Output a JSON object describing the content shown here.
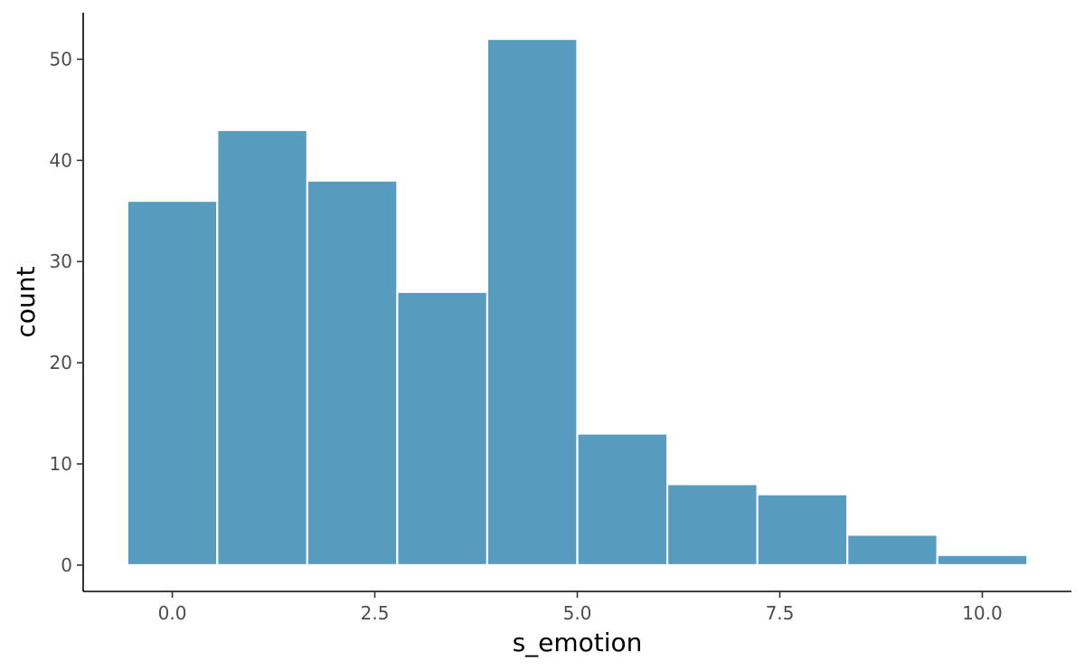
{
  "chart_data": {
    "type": "bar",
    "title": "",
    "xlabel": "s_emotion",
    "ylabel": "count",
    "bar_color": "#579bbe",
    "bin_width": 1.111,
    "bins": [
      {
        "x_center": 0.0,
        "count": 36
      },
      {
        "x_center": 1.111,
        "count": 43
      },
      {
        "x_center": 2.222,
        "count": 38
      },
      {
        "x_center": 3.333,
        "count": 27
      },
      {
        "x_center": 4.444,
        "count": 52
      },
      {
        "x_center": 5.556,
        "count": 13
      },
      {
        "x_center": 6.667,
        "count": 8
      },
      {
        "x_center": 7.778,
        "count": 7
      },
      {
        "x_center": 8.889,
        "count": 3
      },
      {
        "x_center": 10.0,
        "count": 1
      }
    ],
    "xlim": [
      -1.1,
      11.1
    ],
    "ylim": [
      -2.6,
      54.6
    ],
    "x_ticks": [
      0.0,
      2.5,
      5.0,
      7.5,
      10.0
    ],
    "x_tick_labels": [
      "0.0",
      "2.5",
      "5.0",
      "7.5",
      "10.0"
    ],
    "y_ticks": [
      0,
      10,
      20,
      30,
      40,
      50
    ],
    "y_tick_labels": [
      "0",
      "10",
      "20",
      "30",
      "40",
      "50"
    ],
    "grid": false,
    "legend": "none"
  }
}
